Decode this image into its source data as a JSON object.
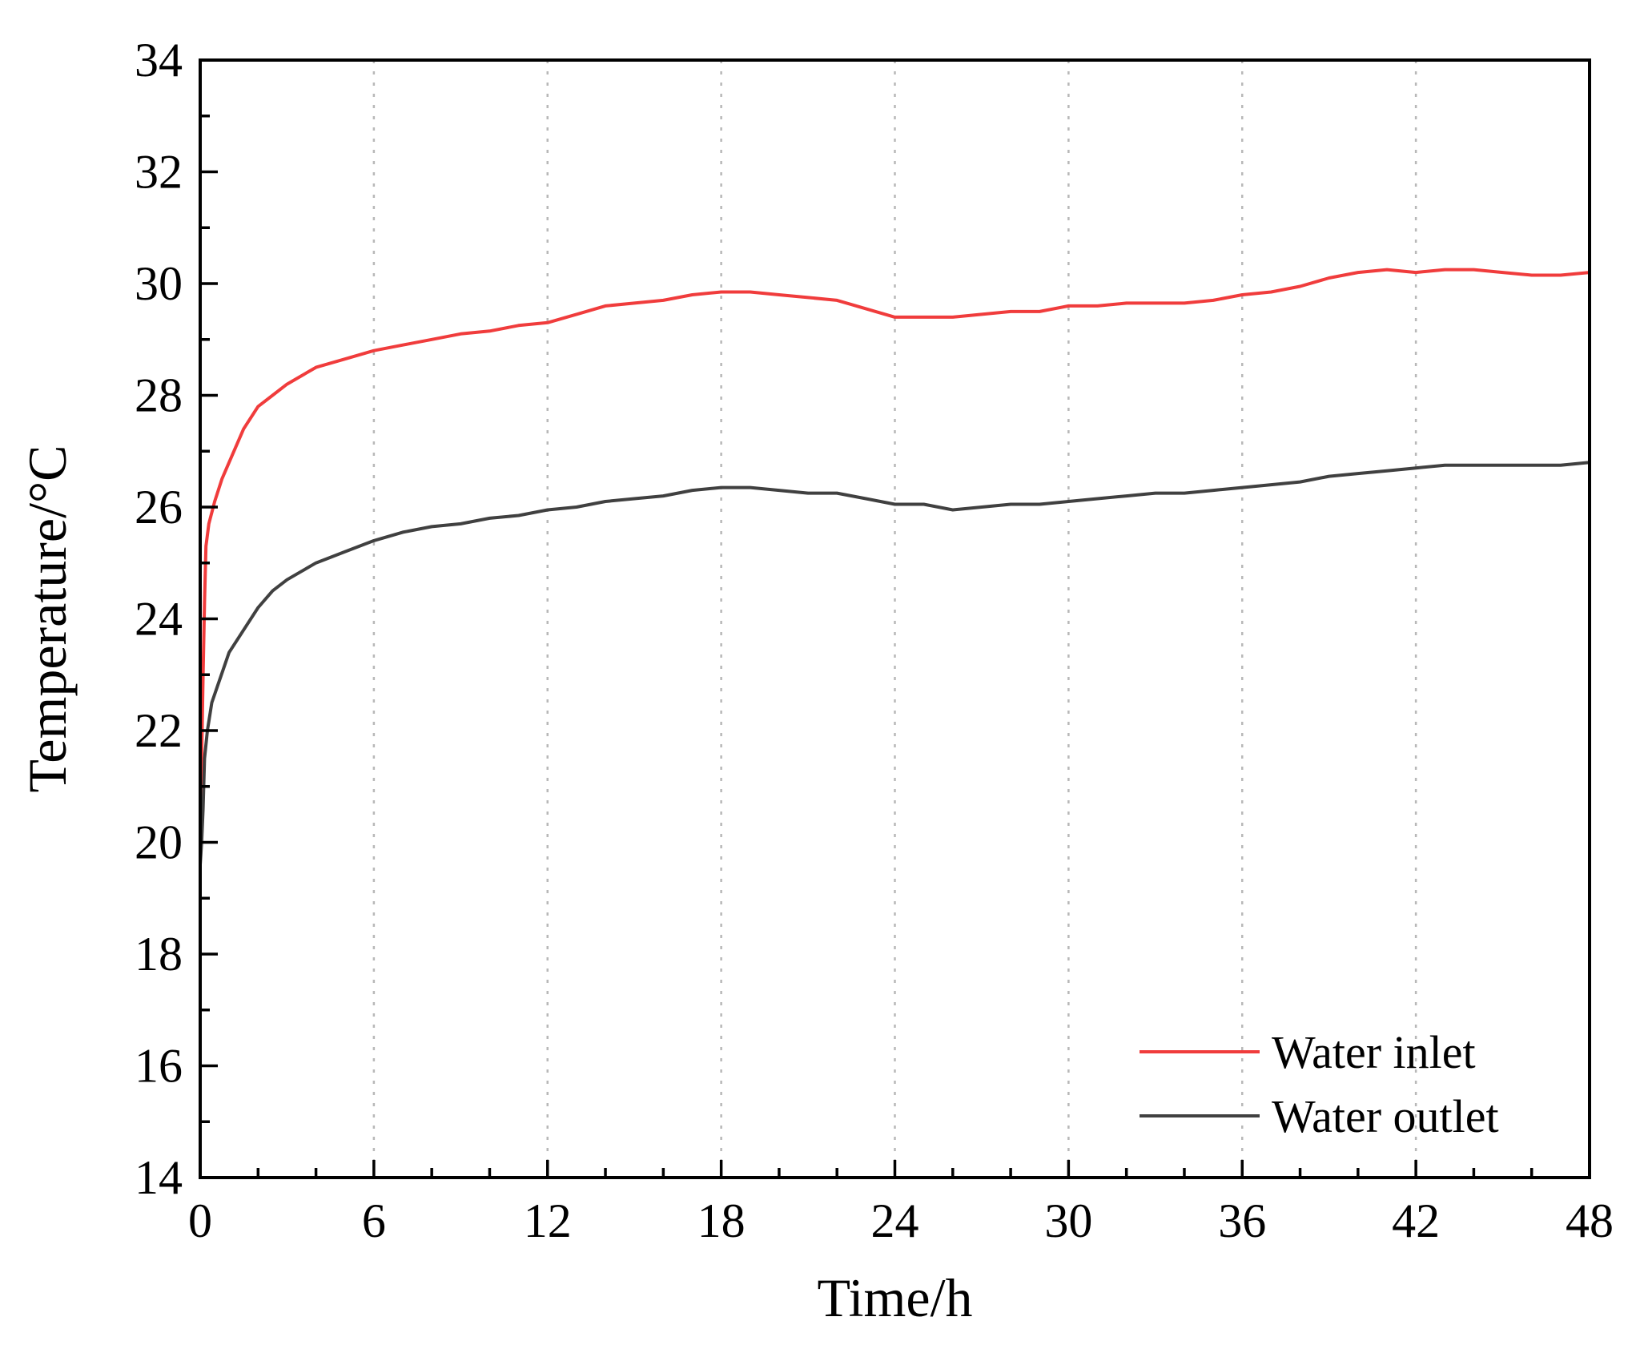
{
  "chart_data": {
    "type": "line",
    "title": "",
    "xlabel": "Time/h",
    "ylabel": "Temperature/°C",
    "xlim": [
      0,
      48
    ],
    "ylim": [
      14,
      34
    ],
    "xticks": [
      0,
      6,
      12,
      18,
      24,
      30,
      36,
      42,
      48
    ],
    "yticks": [
      14,
      16,
      18,
      20,
      22,
      24,
      26,
      28,
      30,
      32,
      34
    ],
    "grid": "vertical dotted at major x ticks",
    "legend_position": "bottom-right",
    "series": [
      {
        "name": "Water inlet",
        "color": "#f03c3c",
        "x": [
          0,
          0.05,
          0.1,
          0.15,
          0.2,
          0.3,
          0.5,
          0.75,
          1,
          1.5,
          2,
          2.5,
          3,
          3.5,
          4,
          5,
          6,
          7,
          8,
          9,
          10,
          11,
          12,
          13,
          14,
          15,
          16,
          17,
          18,
          19,
          20,
          21,
          22,
          23,
          24,
          25,
          26,
          27,
          28,
          29,
          30,
          31,
          32,
          33,
          34,
          35,
          36,
          37,
          38,
          39,
          40,
          41,
          42,
          43,
          44,
          45,
          46,
          47,
          48
        ],
        "y": [
          19.8,
          21.5,
          23.0,
          24.3,
          25.3,
          25.7,
          26.1,
          26.5,
          26.8,
          27.4,
          27.8,
          28.0,
          28.2,
          28.35,
          28.5,
          28.65,
          28.8,
          28.9,
          29.0,
          29.1,
          29.15,
          29.25,
          29.3,
          29.45,
          29.6,
          29.65,
          29.7,
          29.8,
          29.85,
          29.85,
          29.8,
          29.75,
          29.7,
          29.55,
          29.4,
          29.4,
          29.4,
          29.45,
          29.5,
          29.5,
          29.6,
          29.6,
          29.65,
          29.65,
          29.65,
          29.7,
          29.8,
          29.85,
          29.95,
          30.1,
          30.2,
          30.25,
          30.2,
          30.25,
          30.25,
          30.2,
          30.15,
          30.15,
          30.2
        ]
      },
      {
        "name": "Water outlet",
        "color": "#404040",
        "x": [
          0,
          0.05,
          0.1,
          0.15,
          0.25,
          0.4,
          0.6,
          0.8,
          1,
          1.5,
          2,
          2.5,
          3,
          3.5,
          4,
          4.5,
          5,
          6,
          7,
          8,
          9,
          10,
          11,
          12,
          13,
          14,
          15,
          16,
          17,
          18,
          19,
          20,
          21,
          22,
          23,
          24,
          25,
          26,
          27,
          28,
          29,
          30,
          31,
          32,
          33,
          34,
          35,
          36,
          37,
          38,
          39,
          40,
          41,
          42,
          43,
          44,
          45,
          46,
          47,
          48
        ],
        "y": [
          19.6,
          20.0,
          20.6,
          21.5,
          22.0,
          22.5,
          22.8,
          23.1,
          23.4,
          23.8,
          24.2,
          24.5,
          24.7,
          24.85,
          25.0,
          25.1,
          25.2,
          25.4,
          25.55,
          25.65,
          25.7,
          25.8,
          25.85,
          25.95,
          26.0,
          26.1,
          26.15,
          26.2,
          26.3,
          26.35,
          26.35,
          26.3,
          26.25,
          26.25,
          26.15,
          26.05,
          26.05,
          25.95,
          26.0,
          26.05,
          26.05,
          26.1,
          26.15,
          26.2,
          26.25,
          26.25,
          26.3,
          26.35,
          26.4,
          26.45,
          26.55,
          26.6,
          26.65,
          26.7,
          26.75,
          26.75,
          26.75,
          26.75,
          26.75,
          26.8
        ]
      }
    ]
  }
}
